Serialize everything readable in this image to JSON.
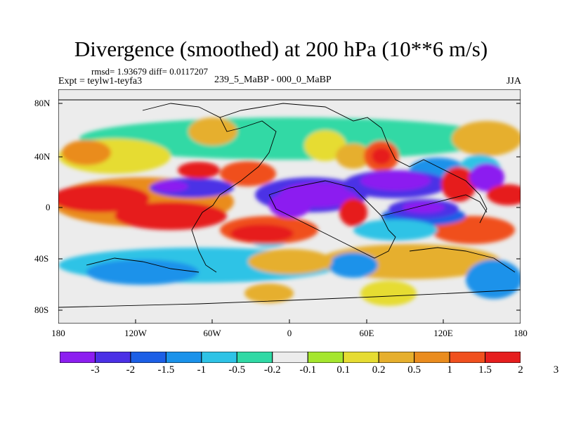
{
  "header": {
    "title": "Divergence (smoothed) at 200 hPa (10**6 m/s)",
    "stats": "rmsd= 1.93679 diff= 0.0117207",
    "experiment": "Expt = teylw1-teyfa3",
    "period": "239_5_MaBP - 000_0_MaBP",
    "season": "JJA"
  },
  "axes": {
    "y_ticks": [
      "80N",
      "40N",
      "0",
      "40S",
      "80S"
    ],
    "x_ticks": [
      "180",
      "120W",
      "60W",
      "0",
      "60E",
      "120E",
      "180"
    ]
  },
  "colorbar": {
    "colors": [
      "#8c1ef0",
      "#4b30e6",
      "#1c5fe6",
      "#1a92ea",
      "#2ec3e6",
      "#30d9a5",
      "#ececec",
      "#a5e62e",
      "#e6dc32",
      "#e6af2d",
      "#ea8c1e",
      "#f0501e",
      "#e61e1e"
    ],
    "labels": [
      "-3",
      "-2",
      "-1.5",
      "-1",
      "-0.5",
      "-0.2",
      "-0.1",
      "0.1",
      "0.2",
      "0.5",
      "1",
      "1.5",
      "2",
      "3"
    ]
  }
}
